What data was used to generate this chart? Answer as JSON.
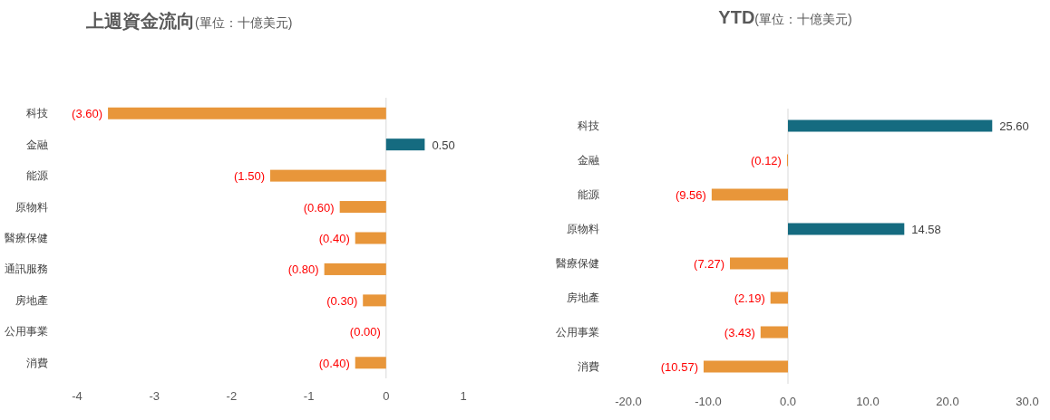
{
  "chart_data": [
    {
      "type": "bar",
      "orientation": "horizontal",
      "title": "上週資金流向",
      "subtitle": "(單位：十億美元)",
      "categories": [
        "科技",
        "金融",
        "能源",
        "原物料",
        "醫療保健",
        "通訊服務",
        "房地產",
        "公用事業",
        "消費"
      ],
      "values": [
        -3.6,
        0.5,
        -1.5,
        -0.6,
        -0.4,
        -0.8,
        -0.3,
        0,
        -0.4
      ],
      "colors": [
        "#e8963a",
        "#156b80",
        "#e8963a",
        "#e8963a",
        "#e8963a",
        "#e8963a",
        "#e8963a",
        "#e8963a",
        "#e8963a"
      ],
      "value_labels": [
        "(3.60)",
        "0.50",
        "(1.50)",
        "(0.60)",
        "(0.40)",
        "(0.80)",
        "(0.30)",
        "(0.00)",
        "(0.40)"
      ],
      "xlim": [
        -4,
        1
      ],
      "xticks": [
        -4,
        -3,
        -2,
        -1,
        0,
        1
      ]
    },
    {
      "type": "bar",
      "orientation": "horizontal",
      "title": "YTD",
      "subtitle": "(單位：十億美元)",
      "categories": [
        "科技",
        "金融",
        "能源",
        "原物料",
        "醫療保健",
        "房地產",
        "公用事業",
        "消費"
      ],
      "values": [
        25.6,
        -0.12,
        -9.56,
        14.58,
        -7.27,
        -2.19,
        -3.43,
        -10.57
      ],
      "colors": [
        "#156b80",
        "#e8963a",
        "#e8963a",
        "#156b80",
        "#e8963a",
        "#e8963a",
        "#e8963a",
        "#e8963a"
      ],
      "value_labels": [
        "25.60",
        "(0.12)",
        "(9.56)",
        "14.58",
        "(7.27)",
        "(2.19)",
        "(3.43)",
        "(10.57)"
      ],
      "xlim": [
        -20,
        30
      ],
      "xticks": [
        {
          "value": -20,
          "label": "-20.0"
        },
        {
          "value": -10,
          "label": "-10.0"
        },
        {
          "value": 0,
          "label": "0.0"
        },
        {
          "value": 10,
          "label": "10.0"
        },
        {
          "value": 20,
          "label": "20.0"
        },
        {
          "value": 30,
          "label": "30.0"
        }
      ]
    }
  ]
}
